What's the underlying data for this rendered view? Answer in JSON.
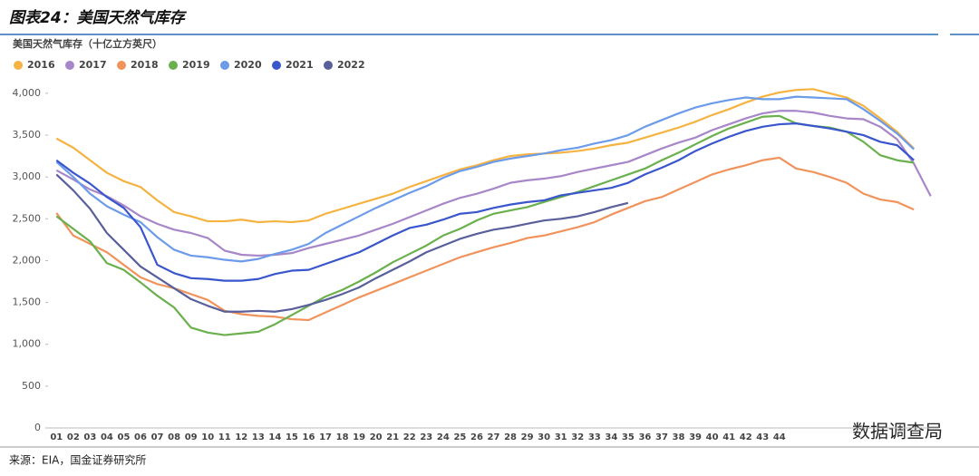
{
  "chart_data": {
    "type": "line",
    "title": "图表24：美国天然气库存",
    "y_label": "美国天然气库存（十亿立方英尺）",
    "source": "来源：EIA，国金证券研究所",
    "watermark": "数据调查局",
    "categories": [
      "01",
      "02",
      "03",
      "04",
      "05",
      "06",
      "07",
      "08",
      "09",
      "10",
      "11",
      "12",
      "13",
      "14",
      "15",
      "16",
      "17",
      "18",
      "19",
      "20",
      "21",
      "22",
      "23",
      "24",
      "25",
      "26",
      "27",
      "28",
      "29",
      "30",
      "31",
      "32",
      "33",
      "34",
      "35",
      "36",
      "37",
      "38",
      "39",
      "40",
      "41",
      "42",
      "43",
      "44",
      null,
      null,
      null,
      null,
      null,
      null,
      null,
      null,
      null
    ],
    "ylim": [
      0,
      4400
    ],
    "yticks": [
      0,
      500,
      {
        "value": 1000,
        "label": "1,000"
      },
      {
        "value": 1500,
        "label": "1,500"
      },
      {
        "value": 2000,
        "label": "2,000"
      },
      {
        "value": 2500,
        "label": "2,500"
      },
      {
        "value": 3000,
        "label": "3,000"
      },
      {
        "value": 3500,
        "label": "3,500"
      },
      {
        "value": 4000,
        "label": "4,000"
      }
    ],
    "legend": "top-left",
    "series": [
      {
        "name": "2016",
        "color": "#f5b342",
        "values": [
          3460,
          3350,
          3200,
          3050,
          2950,
          2880,
          2720,
          2580,
          2530,
          2470,
          2470,
          2490,
          2460,
          2470,
          2460,
          2480,
          2560,
          2620,
          2680,
          2740,
          2800,
          2880,
          2950,
          3020,
          3090,
          3140,
          3200,
          3250,
          3270,
          3280,
          3290,
          3310,
          3340,
          3380,
          3410,
          3470,
          3530,
          3590,
          3660,
          3740,
          3810,
          3890,
          3960,
          4010,
          4040,
          4050,
          4000,
          3950,
          3850,
          3700,
          3540,
          3340,
          null
        ]
      },
      {
        "name": "2017",
        "color": "#a887c9",
        "values": [
          3080,
          2970,
          2850,
          2770,
          2660,
          2530,
          2440,
          2370,
          2330,
          2270,
          2120,
          2070,
          2060,
          2070,
          2090,
          2150,
          2200,
          2250,
          2300,
          2370,
          2440,
          2520,
          2600,
          2680,
          2750,
          2800,
          2860,
          2930,
          2960,
          2980,
          3010,
          3060,
          3100,
          3140,
          3180,
          3260,
          3340,
          3410,
          3470,
          3560,
          3630,
          3700,
          3760,
          3790,
          3790,
          3770,
          3730,
          3700,
          3690,
          3600,
          3450,
          3160,
          2770
        ]
      },
      {
        "name": "2018",
        "color": "#f0935c",
        "values": [
          2570,
          2300,
          2200,
          2100,
          1950,
          1800,
          1720,
          1670,
          1600,
          1530,
          1400,
          1360,
          1340,
          1330,
          1300,
          1290,
          1380,
          1470,
          1560,
          1640,
          1720,
          1800,
          1880,
          1960,
          2040,
          2100,
          2160,
          2210,
          2270,
          2300,
          2350,
          2400,
          2460,
          2550,
          2630,
          2710,
          2760,
          2850,
          2940,
          3030,
          3090,
          3140,
          3200,
          3230,
          3100,
          3060,
          3000,
          2930,
          2800,
          2730,
          2700,
          2610,
          null
        ]
      },
      {
        "name": "2019",
        "color": "#6ab04c",
        "values": [
          2530,
          2380,
          2230,
          1970,
          1890,
          1740,
          1580,
          1440,
          1200,
          1140,
          1110,
          1130,
          1150,
          1240,
          1350,
          1460,
          1570,
          1650,
          1750,
          1860,
          1980,
          2080,
          2180,
          2300,
          2380,
          2480,
          2560,
          2600,
          2640,
          2700,
          2760,
          2820,
          2890,
          2960,
          3030,
          3100,
          3200,
          3290,
          3390,
          3490,
          3580,
          3650,
          3720,
          3730,
          3640,
          3610,
          3590,
          3540,
          3420,
          3260,
          3200,
          3170,
          null
        ]
      },
      {
        "name": "2020",
        "color": "#6c9bea",
        "values": [
          3180,
          3000,
          2800,
          2650,
          2550,
          2460,
          2280,
          2130,
          2060,
          2040,
          2010,
          1990,
          2020,
          2080,
          2130,
          2200,
          2330,
          2430,
          2530,
          2630,
          2720,
          2810,
          2890,
          2990,
          3070,
          3120,
          3180,
          3220,
          3250,
          3280,
          3320,
          3350,
          3400,
          3440,
          3500,
          3600,
          3680,
          3760,
          3830,
          3880,
          3920,
          3950,
          3930,
          3930,
          3960,
          3950,
          3940,
          3930,
          3810,
          3670,
          3520,
          3330,
          null
        ]
      },
      {
        "name": "2021",
        "color": "#3a56cc",
        "values": [
          3200,
          3050,
          2920,
          2760,
          2630,
          2400,
          1950,
          1850,
          1790,
          1780,
          1760,
          1760,
          1780,
          1840,
          1880,
          1890,
          1960,
          2030,
          2100,
          2200,
          2300,
          2390,
          2430,
          2490,
          2560,
          2580,
          2630,
          2670,
          2700,
          2720,
          2780,
          2810,
          2840,
          2870,
          2930,
          3030,
          3110,
          3200,
          3310,
          3400,
          3480,
          3550,
          3600,
          3630,
          3640,
          3610,
          3580,
          3540,
          3500,
          3420,
          3380,
          3200,
          null
        ]
      },
      {
        "name": "2022",
        "color": "#585f9a",
        "values": [
          3030,
          2840,
          2620,
          2330,
          2130,
          1930,
          1800,
          1670,
          1540,
          1460,
          1390,
          1390,
          1400,
          1390,
          1420,
          1470,
          1530,
          1600,
          1680,
          1790,
          1890,
          1990,
          2100,
          2180,
          2260,
          2320,
          2370,
          2400,
          2440,
          2480,
          2500,
          2530,
          2580,
          2640,
          2690,
          null,
          null,
          null,
          null,
          null,
          null,
          null,
          null,
          null,
          null,
          null,
          null,
          null,
          null,
          null,
          null,
          null,
          null
        ]
      }
    ]
  }
}
